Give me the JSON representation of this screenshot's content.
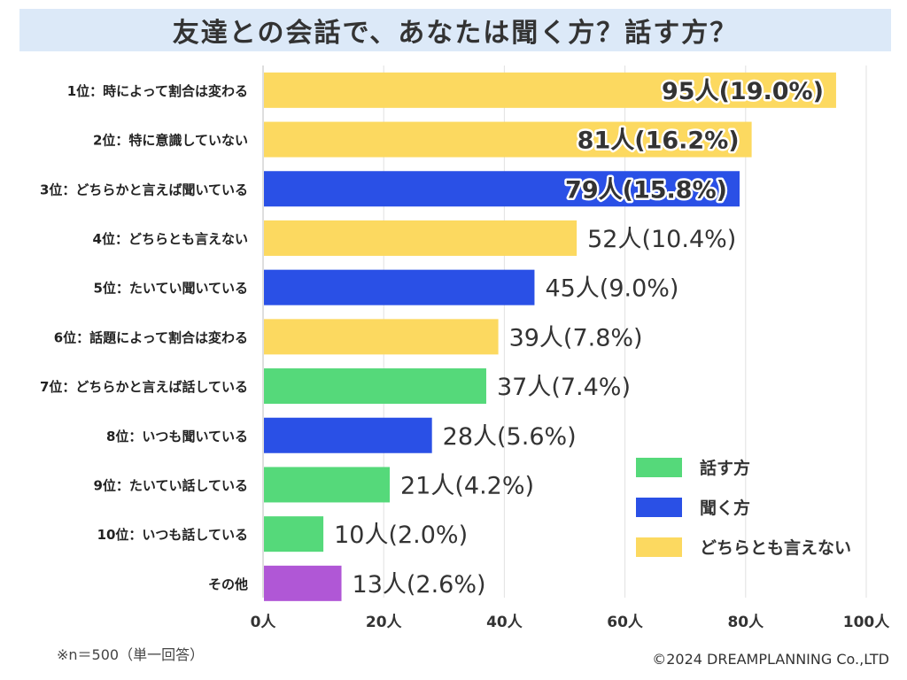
{
  "title": "友達との会話で、あなたは聞く方？話す方？",
  "chart_data": {
    "type": "bar",
    "orientation": "horizontal",
    "title": "友達との会話で、あなたは聞く方？話す方？",
    "categories": [
      "1位：時によって割合は変わる",
      "2位：特に意識していない",
      "3位：どちらかと言えば聞いている",
      "4位：どちらとも言えない",
      "5位：たいてい聞いている",
      "6位：話題によって割合は変わる",
      "7位：どちらかと言えば話している",
      "8位：いつも聞いている",
      "9位：たいてい話している",
      "10位：いつも話している",
      "その他"
    ],
    "values": [
      95,
      81,
      79,
      52,
      45,
      39,
      37,
      28,
      21,
      10,
      13
    ],
    "value_labels": [
      "95人(19.0%)",
      "81人(16.2%)",
      "79人(15.8%)",
      "52人(10.4%)",
      "45人(9.0%)",
      "39人(7.8%)",
      "37人(7.4%)",
      "28人(5.6%)",
      "21人(4.2%)",
      "10人(2.0%)",
      "13人(2.6%)"
    ],
    "groups": [
      "neutral",
      "neutral",
      "listen",
      "neutral",
      "listen",
      "neutral",
      "talk",
      "listen",
      "talk",
      "talk",
      "other"
    ],
    "group_colors": {
      "talk": "#55d97a",
      "listen": "#2a50e6",
      "neutral": "#fcd960",
      "other": "#b057d6"
    },
    "legend": [
      {
        "group": "talk",
        "label": "話す方"
      },
      {
        "group": "listen",
        "label": "聞く方"
      },
      {
        "group": "neutral",
        "label": "どちらとも言えない"
      }
    ],
    "legend_position": "bottom-right",
    "xlim": [
      0,
      100
    ],
    "xticks": [
      0,
      20,
      40,
      60,
      80,
      100
    ],
    "xtick_labels": [
      "0人",
      "20人",
      "40人",
      "60人",
      "80人",
      "100人"
    ],
    "xlabel": "",
    "ylabel": "",
    "grid": true
  },
  "footnote": "※n＝500（単一回答）",
  "copyright": "©2024 DREAMPLANNING Co.,LTD"
}
